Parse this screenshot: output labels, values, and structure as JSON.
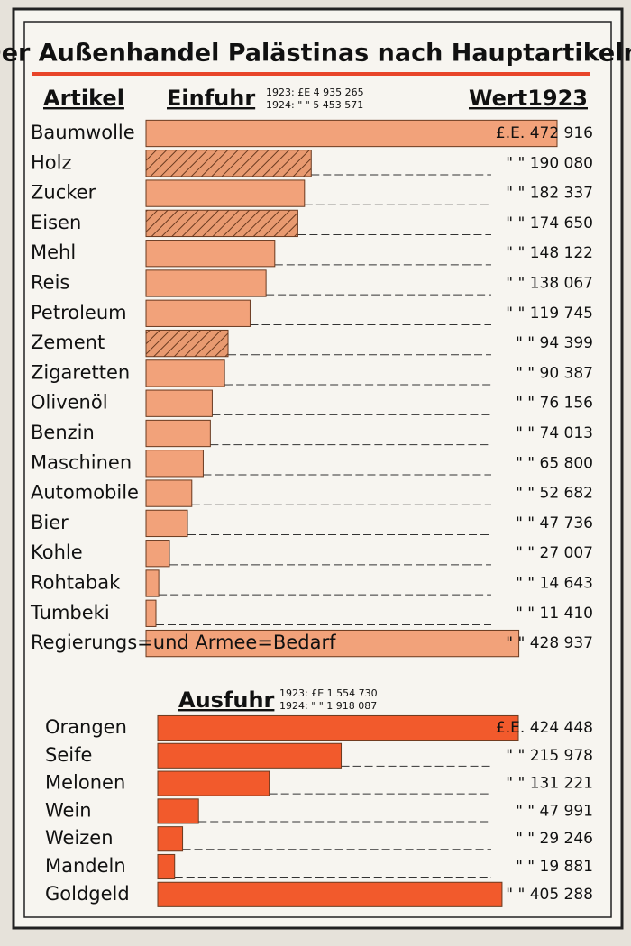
{
  "chart_data": [
    {
      "type": "bar",
      "title": "Der Außenhandel Palästinas nach Hauptartikeln",
      "category_label": "Artikel",
      "series_label": "Einfuhr",
      "value_label": "Wert1923",
      "totals": [
        "1923: £E 4 935 265",
        "1924: \" \" 5 453 571"
      ],
      "color": "#f2a27a",
      "categories": [
        "Baumwolle",
        "Holz",
        "Zucker",
        "Eisen",
        "Mehl",
        "Reis",
        "Petroleum",
        "Zement",
        "Zigaretten",
        "Olivenöl",
        "Benzin",
        "Maschinen",
        "Automobile",
        "Bier",
        "Kohle",
        "Rohtabak",
        "Tumbeki",
        "Regierungs=und Armee=Bedarf"
      ],
      "values": [
        472916,
        190080,
        182337,
        174650,
        148122,
        138067,
        119745,
        94399,
        90387,
        76156,
        74013,
        65800,
        52682,
        47736,
        27007,
        14643,
        11410,
        428937
      ],
      "value_labels": [
        "£.E. 472 916",
        "\" \" 190 080",
        "\" \" 182 337",
        "\" \" 174 650",
        "\" \" 148 122",
        "\" \" 138 067",
        "\" \" 119 745",
        "\" \" 94 399",
        "\" \" 90 387",
        "\" \" 76 156",
        "\" \" 74 013",
        "\" \" 65 800",
        "\" \" 52 682",
        "\" \" 47 736",
        "\" \" 27 007",
        "\" \" 14 643",
        "\" \" 11 410",
        "\" \" 428 937"
      ],
      "hatched": [
        false,
        true,
        false,
        true,
        false,
        false,
        false,
        true,
        false,
        false,
        false,
        false,
        false,
        false,
        false,
        false,
        false,
        false
      ]
    },
    {
      "type": "bar",
      "series_label": "Ausfuhr",
      "totals": [
        "1923: £E 1 554 730",
        "1924: \" \" 1 918 087"
      ],
      "color": "#f25a2c",
      "categories": [
        "Orangen",
        "Seife",
        "Melonen",
        "Wein",
        "Weizen",
        "Mandeln",
        "Goldgeld"
      ],
      "values": [
        424448,
        215978,
        131221,
        47991,
        29246,
        19881,
        405288
      ],
      "value_labels": [
        "£.E. 424 448",
        "\" \" 215 978",
        "\" \" 131 221",
        "\" \" 47 991",
        "\" \" 29 246",
        "\" \" 19 881",
        "\" \" 405 288"
      ]
    }
  ]
}
